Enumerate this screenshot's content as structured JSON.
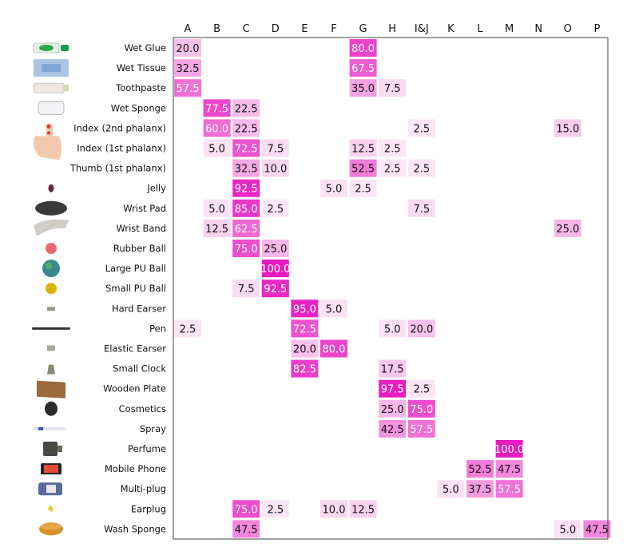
{
  "chart_data": {
    "type": "heatmap",
    "title": "",
    "xlabel": "",
    "ylabel": "",
    "columns": [
      "A",
      "B",
      "C",
      "D",
      "E",
      "F",
      "G",
      "H",
      "I&J",
      "K",
      "L",
      "M",
      "N",
      "O",
      "P"
    ],
    "rows": [
      {
        "label": "Wet Glue",
        "icon": "wet-glue-icon",
        "values": {
          "A": 20.0,
          "G": 80.0
        }
      },
      {
        "label": "Wet Tissue",
        "icon": "wet-tissue-icon",
        "values": {
          "A": 32.5,
          "G": 67.5
        }
      },
      {
        "label": "Toothpaste",
        "icon": "toothpaste-icon",
        "values": {
          "A": 57.5,
          "G": 35.0,
          "H": 7.5
        }
      },
      {
        "label": "Wet Sponge",
        "icon": "wet-sponge-icon",
        "values": {
          "B": 77.5,
          "C": 22.5
        }
      },
      {
        "label": "Index (2nd phalanx)",
        "icon": "hand-icon",
        "values": {
          "B": 60.0,
          "C": 22.5,
          "I&J": 2.5,
          "O": 15.0
        }
      },
      {
        "label": "Index (1st phalanx)",
        "icon": "",
        "values": {
          "B": 5.0,
          "C": 72.5,
          "D": 7.5,
          "G": 12.5,
          "H": 2.5
        }
      },
      {
        "label": "Thumb (1st phalanx)",
        "icon": "",
        "values": {
          "C": 32.5,
          "D": 10.0,
          "G": 52.5,
          "H": 2.5,
          "I&J": 2.5
        }
      },
      {
        "label": "Jelly",
        "icon": "jelly-icon",
        "values": {
          "C": 92.5,
          "F": 5.0,
          "G": 2.5
        }
      },
      {
        "label": "Wrist Pad",
        "icon": "wrist-pad-icon",
        "values": {
          "B": 5.0,
          "C": 85.0,
          "D": 2.5,
          "I&J": 7.5
        }
      },
      {
        "label": "Wrist Band",
        "icon": "wrist-band-icon",
        "values": {
          "B": 12.5,
          "C": 62.5,
          "O": 25.0
        }
      },
      {
        "label": "Rubber Ball",
        "icon": "rubber-ball-icon",
        "values": {
          "C": 75.0,
          "D": 25.0
        }
      },
      {
        "label": "Large PU Ball",
        "icon": "large-pu-ball-icon",
        "values": {
          "D": 100.0
        }
      },
      {
        "label": "Small PU Ball",
        "icon": "small-pu-ball-icon",
        "values": {
          "C": 7.5,
          "D": 92.5
        }
      },
      {
        "label": "Hard Earser",
        "icon": "hard-eraser-icon",
        "values": {
          "E": 95.0,
          "F": 5.0
        }
      },
      {
        "label": "Pen",
        "icon": "pen-icon",
        "values": {
          "A": 2.5,
          "E": 72.5,
          "H": 5.0,
          "I&J": 20.0
        }
      },
      {
        "label": "Elastic Earser",
        "icon": "elastic-eraser-icon",
        "values": {
          "E": 20.0,
          "F": 80.0
        }
      },
      {
        "label": "Small Clock",
        "icon": "small-clock-icon",
        "values": {
          "E": 82.5,
          "H": 17.5
        }
      },
      {
        "label": "Wooden Plate",
        "icon": "wooden-plate-icon",
        "values": {
          "H": 97.5,
          "I&J": 2.5
        }
      },
      {
        "label": "Cosmetics",
        "icon": "cosmetics-icon",
        "values": {
          "H": 25.0,
          "I&J": 75.0
        }
      },
      {
        "label": "Spray",
        "icon": "spray-icon",
        "values": {
          "H": 42.5,
          "I&J": 57.5
        }
      },
      {
        "label": "Perfume",
        "icon": "perfume-icon",
        "values": {
          "M": 100.0
        }
      },
      {
        "label": "Mobile Phone",
        "icon": "mobile-phone-icon",
        "values": {
          "L": 52.5,
          "M": 47.5
        }
      },
      {
        "label": "Multi-plug",
        "icon": "multi-plug-icon",
        "values": {
          "K": 5.0,
          "L": 37.5,
          "M": 57.5
        }
      },
      {
        "label": "Earplug",
        "icon": "earplug-icon",
        "values": {
          "C": 75.0,
          "D": 2.5,
          "F": 10.0,
          "G": 12.5
        }
      },
      {
        "label": "Wash Sponge",
        "icon": "wash-sponge-icon",
        "values": {
          "C": 47.5,
          "O": 5.0,
          "P": 47.5
        }
      }
    ],
    "value_range": [
      0,
      100
    ],
    "colors": {
      "low": "#fdebf6",
      "high": "#e619bf",
      "border": "#444444"
    },
    "grid": false,
    "legend": "none"
  }
}
